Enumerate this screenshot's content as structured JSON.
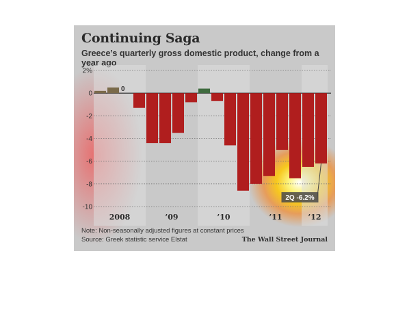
{
  "header": {
    "title": "Continuing Saga",
    "subtitle": "Greece’s quarterly gross domestic product, change from a year ago"
  },
  "footer": {
    "note": "Note: Non-seasonally adjusted figures at constant prices",
    "source": "Source: Greek statistic service Elstat",
    "credit": "The Wall Street Journal"
  },
  "colors": {
    "negative_bar": "#b01e1e",
    "positive_bar_2008": "#7a6a4a",
    "positive_bar_2010": "#3f6b3f",
    "band": "#dcdcdc",
    "annotation_box": "#4a4a4a"
  },
  "chart_data": {
    "type": "bar",
    "title": "Continuing Saga",
    "subtitle": "Greece’s quarterly gross domestic product, change from a year ago",
    "ylim": [
      -10,
      2
    ],
    "yticks": [
      2,
      0,
      -2,
      -4,
      -6,
      -8,
      -10
    ],
    "ytick_labels": [
      "2%",
      "0",
      "-2",
      "-4",
      "-6",
      "-8",
      "-10"
    ],
    "grid": true,
    "year_labels": [
      "2008",
      "’09",
      "’10",
      "’11",
      "’12"
    ],
    "quarters": [
      "2008 Q1",
      "2008 Q2",
      "2008 Q3",
      "2008 Q4",
      "2009 Q1",
      "2009 Q2",
      "2009 Q3",
      "2009 Q4",
      "2010 Q1",
      "2010 Q2",
      "2010 Q3",
      "2010 Q4",
      "2011 Q1",
      "2011 Q2",
      "2011 Q3",
      "2011 Q4",
      "2012 Q1",
      "2012 Q2"
    ],
    "values": [
      0.2,
      0.5,
      0.0,
      -1.3,
      -4.4,
      -4.4,
      -3.5,
      -0.8,
      0.4,
      -0.7,
      -4.6,
      -8.6,
      -8.0,
      -7.3,
      -5.0,
      -7.5,
      -6.5,
      -6.2
    ],
    "zero_label": "0",
    "annotation": "2Q -6.2%"
  }
}
